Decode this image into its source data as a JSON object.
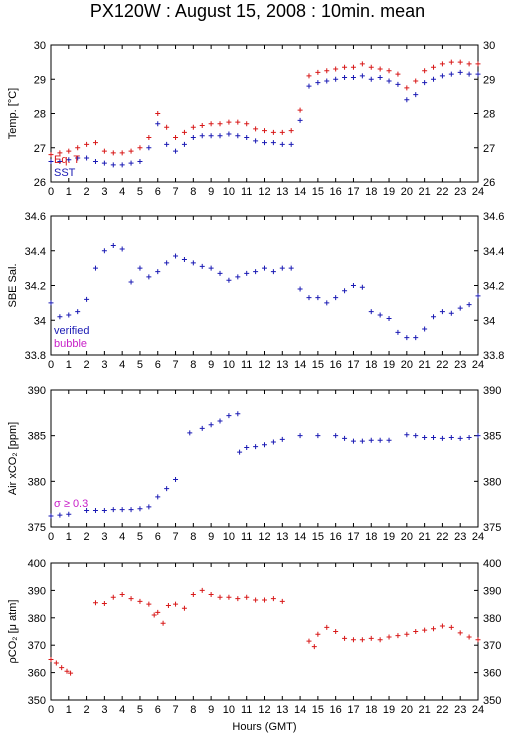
{
  "title": "PX120W : August 15, 2008 : 10min. mean",
  "colors": {
    "blue": "#1a1ab4",
    "red": "#d81818",
    "magenta": "#c81ec8",
    "axis": "#000000"
  },
  "chart_data": [
    {
      "type": "scatter",
      "ylabel": "Temp. [°C]",
      "ylim": [
        26,
        30
      ],
      "yticks": [
        "26",
        "27",
        "28",
        "29",
        "30"
      ],
      "xlim": [
        0,
        24
      ],
      "xticks": [
        "0",
        "1",
        "2",
        "3",
        "4",
        "5",
        "6",
        "7",
        "8",
        "9",
        "10",
        "11",
        "12",
        "13",
        "14",
        "15",
        "16",
        "17",
        "18",
        "19",
        "20",
        "21",
        "22",
        "23",
        "24"
      ],
      "annotations": [
        "Eq. T",
        "SST"
      ],
      "series": [
        {
          "name": "Eq. T",
          "color": "red",
          "x": [
            0,
            0.5,
            1,
            1.5,
            2,
            2.5,
            3,
            3.5,
            4,
            4.5,
            5,
            5.5,
            6,
            6.5,
            7,
            7.5,
            8,
            8.5,
            9,
            9.5,
            10,
            10.5,
            11,
            11.5,
            12,
            12.5,
            13,
            13.5,
            14,
            14.5,
            15,
            15.5,
            16,
            16.5,
            17,
            17.5,
            18,
            18.5,
            19,
            19.5,
            20,
            20.5,
            21,
            21.5,
            22,
            22.5,
            23,
            23.5,
            24
          ],
          "y": [
            26.8,
            26.85,
            26.9,
            27.0,
            27.1,
            27.15,
            26.9,
            26.85,
            26.85,
            26.9,
            27.0,
            27.3,
            28.0,
            27.6,
            27.3,
            27.45,
            27.6,
            27.65,
            27.7,
            27.7,
            27.75,
            27.75,
            27.7,
            27.55,
            27.5,
            27.45,
            27.45,
            27.5,
            28.1,
            29.1,
            29.2,
            29.25,
            29.3,
            29.35,
            29.35,
            29.45,
            29.35,
            29.3,
            29.25,
            29.15,
            28.75,
            28.95,
            29.25,
            29.35,
            29.45,
            29.5,
            29.5,
            29.45,
            29.45
          ]
        },
        {
          "name": "SST",
          "color": "blue",
          "x": [
            0,
            0.5,
            1,
            1.5,
            2,
            2.5,
            3,
            3.5,
            4,
            4.5,
            5,
            5.5,
            6,
            6.5,
            7,
            7.5,
            8,
            8.5,
            9,
            9.5,
            10,
            10.5,
            11,
            11.5,
            12,
            12.5,
            13,
            13.5,
            14,
            14.5,
            15,
            15.5,
            16,
            16.5,
            17,
            17.5,
            18,
            18.5,
            19,
            19.5,
            20,
            20.5,
            21,
            21.5,
            22,
            22.5,
            23,
            23.5,
            24
          ],
          "y": [
            26.6,
            26.6,
            26.65,
            26.7,
            26.7,
            26.6,
            26.55,
            26.5,
            26.5,
            26.55,
            26.6,
            27.0,
            27.7,
            27.1,
            26.9,
            27.1,
            27.3,
            27.35,
            27.35,
            27.35,
            27.4,
            27.35,
            27.3,
            27.2,
            27.15,
            27.15,
            27.1,
            27.1,
            27.8,
            28.8,
            28.9,
            28.95,
            29.0,
            29.05,
            29.05,
            29.1,
            29.0,
            29.05,
            28.95,
            28.85,
            28.4,
            28.55,
            28.9,
            29.0,
            29.1,
            29.15,
            29.2,
            29.15,
            29.15
          ]
        }
      ]
    },
    {
      "type": "scatter",
      "ylabel": "SBE Sal.",
      "ylim": [
        33.8,
        34.6
      ],
      "yticks": [
        "33.8",
        "34",
        "34.2",
        "34.4",
        "34.6"
      ],
      "xlim": [
        0,
        24
      ],
      "xticks": [
        "0",
        "1",
        "2",
        "3",
        "4",
        "5",
        "6",
        "7",
        "8",
        "9",
        "10",
        "11",
        "12",
        "13",
        "14",
        "15",
        "16",
        "17",
        "18",
        "19",
        "20",
        "21",
        "22",
        "23",
        "24"
      ],
      "annotations": [
        "verified",
        "bubble"
      ],
      "series": [
        {
          "name": "verified",
          "color": "blue",
          "x": [
            0,
            0.5,
            1,
            1.5,
            2,
            2.5,
            3,
            3.5,
            4,
            4.5,
            5,
            5.5,
            6,
            6.5,
            7,
            7.5,
            8,
            8.5,
            9,
            9.5,
            10,
            10.5,
            11,
            11.5,
            12,
            12.5,
            13,
            13.5,
            14,
            14.5,
            15,
            15.5,
            16,
            16.5,
            17,
            17.5,
            18,
            18.5,
            19,
            19.5,
            20,
            20.5,
            21,
            21.5,
            22,
            22.5,
            23,
            23.5,
            24
          ],
          "y": [
            34.1,
            34.02,
            34.03,
            34.05,
            34.12,
            34.3,
            34.4,
            34.43,
            34.41,
            34.22,
            34.3,
            34.25,
            34.28,
            34.33,
            34.37,
            34.35,
            34.33,
            34.31,
            34.3,
            34.27,
            34.23,
            34.25,
            34.27,
            34.28,
            34.3,
            34.28,
            34.3,
            34.3,
            34.18,
            34.13,
            34.13,
            34.1,
            34.13,
            34.17,
            34.2,
            34.19,
            34.05,
            34.03,
            34.01,
            33.93,
            33.9,
            33.9,
            33.95,
            34.02,
            34.05,
            34.04,
            34.07,
            34.09,
            34.14
          ]
        }
      ]
    },
    {
      "type": "scatter",
      "ylabel": "Air xCO₂ [ppm]",
      "ylim": [
        375,
        390
      ],
      "yticks": [
        "375",
        "380",
        "385",
        "390"
      ],
      "xlim": [
        0,
        24
      ],
      "xticks": [
        "0",
        "1",
        "2",
        "3",
        "4",
        "5",
        "6",
        "7",
        "8",
        "9",
        "10",
        "11",
        "12",
        "13",
        "14",
        "15",
        "16",
        "17",
        "18",
        "19",
        "20",
        "21",
        "22",
        "23",
        "24"
      ],
      "annotations": [
        "σ ≥ 0.3"
      ],
      "series": [
        {
          "name": "",
          "color": "blue",
          "x": [
            0,
            0.5,
            1,
            2,
            2.5,
            3,
            3.5,
            4,
            4.5,
            5,
            5.5,
            6,
            6.5,
            7,
            7.8,
            8.5,
            9,
            9.5,
            10,
            10.5,
            10.6,
            11,
            11.5,
            12,
            12.5,
            13,
            14,
            15,
            16,
            16.5,
            17,
            17.5,
            18,
            18.5,
            19,
            20,
            20.5,
            21,
            21.5,
            22,
            22.5,
            23,
            23.5,
            24
          ],
          "y": [
            376.2,
            376.3,
            376.4,
            376.8,
            376.8,
            376.8,
            376.9,
            376.9,
            376.9,
            377.0,
            377.2,
            378.3,
            379.2,
            380.2,
            385.3,
            385.8,
            386.2,
            386.6,
            387.2,
            387.4,
            383.2,
            383.7,
            383.8,
            384.0,
            384.3,
            384.6,
            385.0,
            385.0,
            385.0,
            384.7,
            384.4,
            384.4,
            384.5,
            384.5,
            384.5,
            385.1,
            385.0,
            384.8,
            384.8,
            384.7,
            384.8,
            384.7,
            384.8,
            385.0
          ]
        }
      ]
    },
    {
      "type": "scatter",
      "ylabel": "ρCO₂ [μ atm]",
      "ylim": [
        350,
        400
      ],
      "yticks": [
        "350",
        "360",
        "370",
        "380",
        "390",
        "400"
      ],
      "xlim": [
        0,
        24
      ],
      "xticks": [
        "0",
        "1",
        "2",
        "3",
        "4",
        "5",
        "6",
        "7",
        "8",
        "9",
        "10",
        "11",
        "12",
        "13",
        "14",
        "15",
        "16",
        "17",
        "18",
        "19",
        "20",
        "21",
        "22",
        "23",
        "24"
      ],
      "xlabel": "Hours (GMT)",
      "series": [
        {
          "name": "",
          "color": "red",
          "x": [
            0,
            0.3,
            0.6,
            0.9,
            1.1,
            2.5,
            3,
            3.5,
            4,
            4.5,
            5,
            5.5,
            5.8,
            6,
            6.3,
            6.6,
            7,
            7.5,
            8,
            8.5,
            9,
            9.5,
            10,
            10.5,
            11,
            11.5,
            12,
            12.5,
            13,
            14.5,
            14.8,
            15,
            15.5,
            16,
            16.5,
            17,
            17.5,
            18,
            18.5,
            19,
            19.5,
            20,
            20.5,
            21,
            21.5,
            22,
            22.5,
            23,
            23.5,
            24
          ],
          "y": [
            364.8,
            363.5,
            361.8,
            360.5,
            359.8,
            385.5,
            385.2,
            387.5,
            388.5,
            387.0,
            386.0,
            385.0,
            381.0,
            382.0,
            378.0,
            384.5,
            385.0,
            383.5,
            388.5,
            390.0,
            388.5,
            387.5,
            387.5,
            387.0,
            387.5,
            386.5,
            386.5,
            387.0,
            386.0,
            371.5,
            369.5,
            374.0,
            376.5,
            375.0,
            372.5,
            372.0,
            372.0,
            372.5,
            372.0,
            373.0,
            373.5,
            374.0,
            375.0,
            375.5,
            376.0,
            377.0,
            376.5,
            374.5,
            373.0,
            372.0
          ]
        }
      ]
    }
  ]
}
